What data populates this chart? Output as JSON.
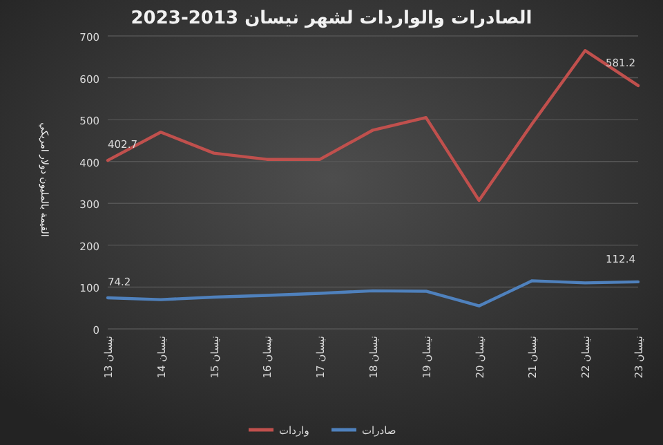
{
  "chart_data": {
    "type": "line",
    "title": "الصادرات والواردات لشهر نيسان 2013-2023",
    "ylabel": "القيمة بالمليون دولار امريكي",
    "categories": [
      "نيسان 13",
      "نيسان 14",
      "نيسان 15",
      "نيسان 16",
      "نيسان 17",
      "نيسان 18",
      "نيسان 19",
      "نيسان 20",
      "نيسان 21",
      "نيسان 22",
      "نيسان 23"
    ],
    "series": [
      {
        "name": "واردات",
        "color": "#c0504d",
        "values": [
          402.7,
          470,
          420,
          405,
          405,
          475,
          505,
          307,
          490,
          665,
          581.2
        ],
        "value_labels": [
          "402.7",
          null,
          null,
          null,
          null,
          null,
          null,
          null,
          null,
          null,
          "581.2"
        ]
      },
      {
        "name": "صادرات",
        "color": "#4f81bd",
        "values": [
          74.2,
          70,
          76,
          80,
          85,
          91,
          90,
          55,
          115,
          110,
          112.4
        ],
        "value_labels": [
          "74.2",
          null,
          null,
          null,
          null,
          null,
          null,
          null,
          null,
          null,
          "112.4"
        ]
      }
    ],
    "ylim": [
      0,
      700
    ],
    "yticks": [
      0,
      100,
      200,
      300,
      400,
      500,
      600,
      700
    ],
    "grid": "y",
    "legend": "bottom"
  }
}
